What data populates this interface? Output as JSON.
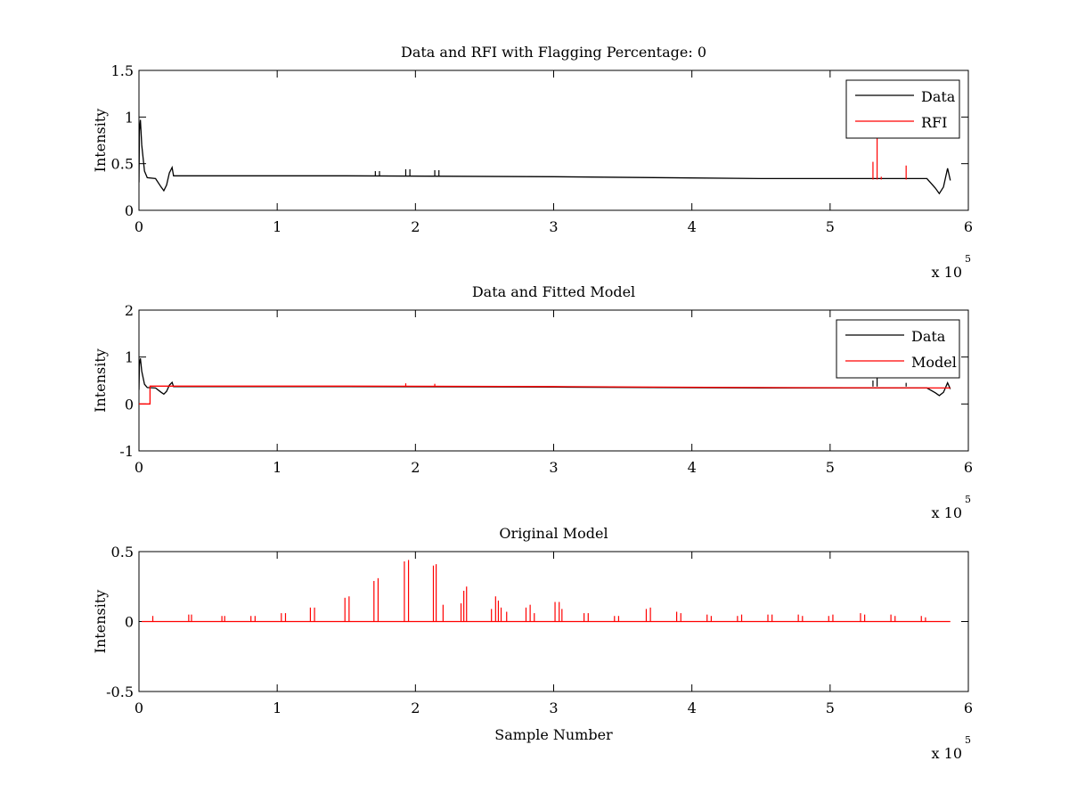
{
  "chart_data": [
    {
      "type": "line",
      "title": "Data and RFI with Flagging Percentage: 0",
      "xlabel": "",
      "ylabel": "Intensity",
      "xlim": [
        0,
        6
      ],
      "ylim": [
        0,
        1.5
      ],
      "xticks": [
        "0",
        "1",
        "2",
        "3",
        "4",
        "5",
        "6"
      ],
      "yticks": [
        "0",
        "0.5",
        "1",
        "1.5"
      ],
      "x_exponent": {
        "base": "x 10",
        "power": "5"
      },
      "legend": {
        "position": "top-right",
        "entries": [
          {
            "label": "Data",
            "color": "#000000"
          },
          {
            "label": "RFI",
            "color": "#ff0000"
          }
        ]
      },
      "series": [
        {
          "name": "Data",
          "color": "#000000",
          "baseline": 0.37,
          "points": [
            [
              0,
              0.3
            ],
            [
              0.003,
              0.85
            ],
            [
              0.01,
              0.97
            ],
            [
              0.02,
              0.7
            ],
            [
              0.04,
              0.42
            ],
            [
              0.06,
              0.35
            ],
            [
              0.12,
              0.34
            ],
            [
              0.16,
              0.25
            ],
            [
              0.18,
              0.21
            ],
            [
              0.2,
              0.27
            ],
            [
              0.22,
              0.4
            ],
            [
              0.24,
              0.46
            ],
            [
              0.25,
              0.37
            ],
            [
              1.5,
              0.37
            ],
            [
              3.0,
              0.36
            ],
            [
              4.5,
              0.34
            ],
            [
              5.7,
              0.34
            ],
            [
              5.76,
              0.24
            ],
            [
              5.79,
              0.18
            ],
            [
              5.82,
              0.25
            ],
            [
              5.85,
              0.45
            ],
            [
              5.87,
              0.32
            ]
          ],
          "spikes": [
            [
              1.71,
              0.42
            ],
            [
              1.74,
              0.42
            ],
            [
              1.93,
              0.44
            ],
            [
              1.96,
              0.44
            ],
            [
              2.14,
              0.43
            ],
            [
              2.17,
              0.43
            ]
          ]
        },
        {
          "name": "RFI",
          "color": "#ff0000",
          "baseline": 0.33,
          "spikes": [
            [
              5.31,
              0.52
            ],
            [
              5.34,
              0.9
            ],
            [
              5.37,
              0.36
            ],
            [
              5.55,
              0.48
            ]
          ]
        }
      ]
    },
    {
      "type": "line",
      "title": "Data and Fitted Model",
      "xlabel": "",
      "ylabel": "Intensity",
      "xlim": [
        0,
        6
      ],
      "ylim": [
        -1,
        2
      ],
      "xticks": [
        "0",
        "1",
        "2",
        "3",
        "4",
        "5",
        "6"
      ],
      "yticks": [
        "-1",
        "0",
        "1",
        "2"
      ],
      "x_exponent": {
        "base": "x 10",
        "power": "5"
      },
      "legend": {
        "position": "top-right",
        "entries": [
          {
            "label": "Data",
            "color": "#000000"
          },
          {
            "label": "Model",
            "color": "#ff0000"
          }
        ]
      },
      "series": [
        {
          "name": "Data",
          "color": "#000000",
          "baseline": 0.37,
          "points": [
            [
              0,
              0.3
            ],
            [
              0.003,
              0.85
            ],
            [
              0.01,
              0.97
            ],
            [
              0.02,
              0.7
            ],
            [
              0.04,
              0.42
            ],
            [
              0.06,
              0.35
            ],
            [
              0.12,
              0.34
            ],
            [
              0.16,
              0.25
            ],
            [
              0.18,
              0.21
            ],
            [
              0.2,
              0.27
            ],
            [
              0.22,
              0.4
            ],
            [
              0.24,
              0.46
            ],
            [
              0.25,
              0.37
            ],
            [
              1.5,
              0.37
            ],
            [
              3.0,
              0.36
            ],
            [
              4.5,
              0.34
            ],
            [
              5.7,
              0.34
            ],
            [
              5.76,
              0.24
            ],
            [
              5.79,
              0.18
            ],
            [
              5.82,
              0.25
            ],
            [
              5.85,
              0.45
            ],
            [
              5.87,
              0.32
            ]
          ],
          "spikes": [
            [
              5.31,
              0.5
            ],
            [
              5.34,
              0.85
            ],
            [
              5.55,
              0.45
            ]
          ]
        },
        {
          "name": "Model",
          "color": "#ff0000",
          "baseline": 0.37,
          "points": [
            [
              0,
              0.0
            ],
            [
              0.08,
              0.0
            ],
            [
              0.08,
              0.38
            ],
            [
              1.5,
              0.38
            ],
            [
              3.0,
              0.37
            ],
            [
              4.5,
              0.35
            ],
            [
              5.87,
              0.34
            ]
          ],
          "spikes": [
            [
              1.93,
              0.44
            ],
            [
              2.14,
              0.43
            ]
          ]
        }
      ]
    },
    {
      "type": "line",
      "title": "Original Model",
      "xlabel": "Sample Number",
      "ylabel": "Intensity",
      "xlim": [
        0,
        6
      ],
      "ylim": [
        -0.5,
        0.5
      ],
      "xticks": [
        "0",
        "1",
        "2",
        "3",
        "4",
        "5",
        "6"
      ],
      "yticks": [
        "-0.5",
        "0",
        "0.5"
      ],
      "x_exponent": {
        "base": "x 10",
        "power": "5"
      },
      "series": [
        {
          "name": "Model",
          "color": "#ff0000",
          "baseline": 0.0,
          "points": [
            [
              0.02,
              0.0
            ],
            [
              5.87,
              0.0
            ]
          ],
          "spikes": [
            [
              0.1,
              0.04
            ],
            [
              0.36,
              0.05
            ],
            [
              0.38,
              0.05
            ],
            [
              0.6,
              0.04
            ],
            [
              0.62,
              0.04
            ],
            [
              0.81,
              0.04
            ],
            [
              0.84,
              0.04
            ],
            [
              1.03,
              0.06
            ],
            [
              1.06,
              0.06
            ],
            [
              1.24,
              0.1
            ],
            [
              1.27,
              0.1
            ],
            [
              1.49,
              0.17
            ],
            [
              1.52,
              0.18
            ],
            [
              1.7,
              0.29
            ],
            [
              1.73,
              0.31
            ],
            [
              1.92,
              0.43
            ],
            [
              1.95,
              0.44
            ],
            [
              2.13,
              0.4
            ],
            [
              2.15,
              0.41
            ],
            [
              2.2,
              0.12
            ],
            [
              2.33,
              0.13
            ],
            [
              2.35,
              0.22
            ],
            [
              2.37,
              0.25
            ],
            [
              2.55,
              0.09
            ],
            [
              2.58,
              0.18
            ],
            [
              2.6,
              0.15
            ],
            [
              2.62,
              0.1
            ],
            [
              2.66,
              0.07
            ],
            [
              2.8,
              0.1
            ],
            [
              2.83,
              0.12
            ],
            [
              2.86,
              0.06
            ],
            [
              3.01,
              0.14
            ],
            [
              3.04,
              0.14
            ],
            [
              3.06,
              0.09
            ],
            [
              3.22,
              0.06
            ],
            [
              3.25,
              0.06
            ],
            [
              3.44,
              0.04
            ],
            [
              3.47,
              0.04
            ],
            [
              3.67,
              0.09
            ],
            [
              3.7,
              0.1
            ],
            [
              3.89,
              0.07
            ],
            [
              3.92,
              0.06
            ],
            [
              4.11,
              0.05
            ],
            [
              4.14,
              0.04
            ],
            [
              4.33,
              0.04
            ],
            [
              4.36,
              0.05
            ],
            [
              4.55,
              0.05
            ],
            [
              4.58,
              0.05
            ],
            [
              4.77,
              0.05
            ],
            [
              4.8,
              0.04
            ],
            [
              4.99,
              0.04
            ],
            [
              5.02,
              0.05
            ],
            [
              5.22,
              0.06
            ],
            [
              5.25,
              0.05
            ],
            [
              5.44,
              0.05
            ],
            [
              5.47,
              0.04
            ],
            [
              5.66,
              0.04
            ],
            [
              5.69,
              0.03
            ]
          ]
        }
      ]
    }
  ]
}
